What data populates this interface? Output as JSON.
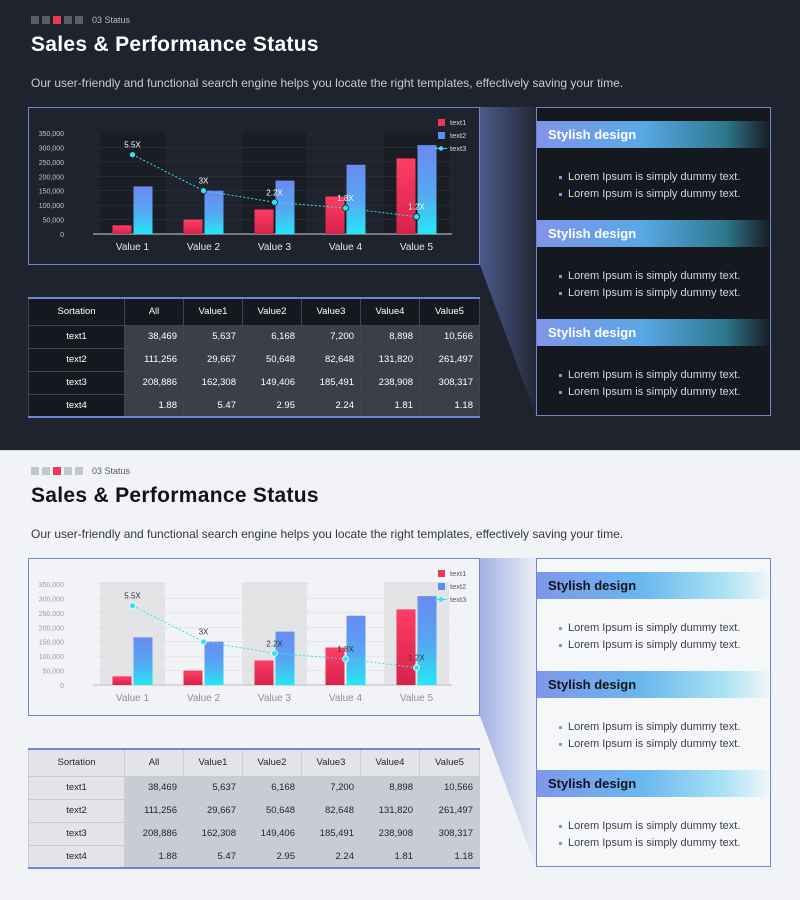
{
  "header": {
    "section_label": "03 Status",
    "title": "Sales & Performance Status",
    "subtitle": "Our user-friendly and functional search engine helps you locate the right templates, effectively  saving your time."
  },
  "chart_data": {
    "type": "bar",
    "categories": [
      "Value 1",
      "Value 2",
      "Value 3",
      "Value 4",
      "Value 5"
    ],
    "ylim": [
      0,
      350000
    ],
    "yticks": [
      "0",
      "50,000",
      "100,000",
      "150,000",
      "200,000",
      "250,000",
      "300,000",
      "350,000"
    ],
    "series": [
      {
        "name": "text1",
        "type": "bar",
        "values": [
          30000,
          50000,
          85000,
          130000,
          262000
        ],
        "color": "#e8395a"
      },
      {
        "name": "text2",
        "type": "bar",
        "values": [
          165000,
          150000,
          185000,
          240000,
          308000
        ],
        "color": "#5a8ef0"
      },
      {
        "name": "text3",
        "type": "line",
        "values": [
          5.5,
          3.0,
          2.2,
          1.8,
          1.2
        ],
        "labels": [
          "5.5X",
          "3X",
          "2.2X",
          "1.8X",
          "1.2X"
        ],
        "ylim": [
          0,
          7
        ],
        "color": "#2ee6f2"
      }
    ],
    "highlighted_categories": [
      "Value 1",
      "Value 3",
      "Value 5"
    ]
  },
  "panel": {
    "sections": [
      {
        "title": "Stylish design",
        "bullets": [
          "Lorem Ipsum is simply dummy text.",
          "Lorem Ipsum is simply dummy text."
        ]
      },
      {
        "title": "Stylish design",
        "bullets": [
          "Lorem Ipsum is simply dummy text.",
          "Lorem Ipsum is simply dummy text."
        ]
      },
      {
        "title": "Stylish design",
        "bullets": [
          "Lorem Ipsum is simply dummy text.",
          "Lorem Ipsum is simply dummy text."
        ]
      }
    ]
  },
  "table": {
    "headers": [
      "Sortation",
      "All",
      "Value1",
      "Value2",
      "Value3",
      "Value4",
      "Value5"
    ],
    "rows": [
      [
        "text1",
        "38,469",
        "5,637",
        "6,168",
        "7,200",
        "8,898",
        "10,566"
      ],
      [
        "text2",
        "111,256",
        "29,667",
        "50,648",
        "82,648",
        "131,820",
        "261,497"
      ],
      [
        "text3",
        "208,886",
        "162,308",
        "149,406",
        "185,491",
        "238,908",
        "308,317"
      ],
      [
        "text4",
        "1.88",
        "5.47",
        "2.95",
        "2.24",
        "1.81",
        "1.18"
      ]
    ]
  },
  "colors": {
    "accent_red": "#e8395a",
    "accent_blue": "#5a8ef0",
    "accent_cyan": "#2ee6f2",
    "frame": "#6f86d6"
  }
}
